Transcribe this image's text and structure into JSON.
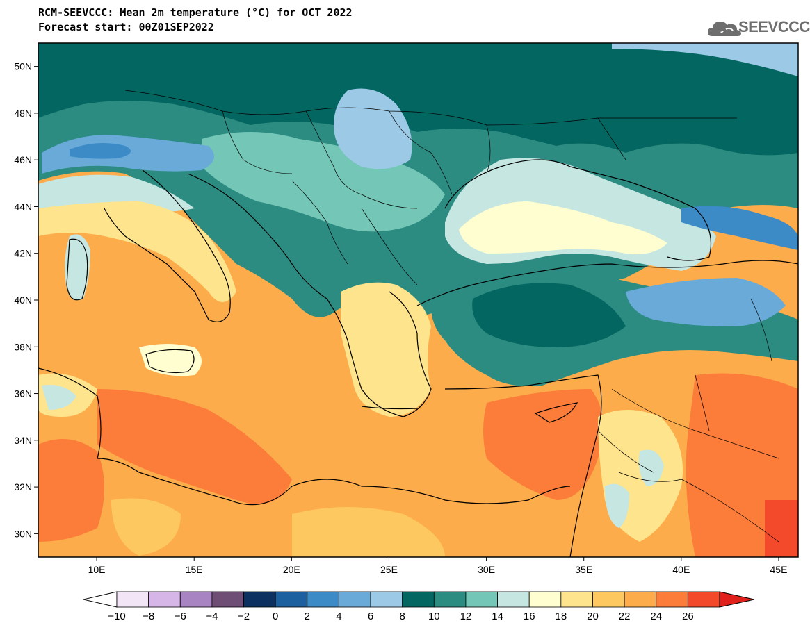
{
  "header": {
    "title": "RCM-SEEVCCC: Mean 2m temperature (°C) for OCT 2022",
    "subtitle": "Forecast start: 00Z01SEP2022",
    "logo_text": "SEEVCCC",
    "logo_icon": "cloud-icon"
  },
  "map": {
    "lat_range": [
      29,
      51
    ],
    "lon_range": [
      7,
      46
    ],
    "lat_labels": [
      "30N",
      "32N",
      "34N",
      "36N",
      "38N",
      "40N",
      "42N",
      "44N",
      "46N",
      "48N",
      "50N"
    ],
    "lat_values": [
      30,
      32,
      34,
      36,
      38,
      40,
      42,
      44,
      46,
      48,
      50
    ],
    "lon_labels": [
      "10E",
      "15E",
      "20E",
      "25E",
      "30E",
      "35E",
      "40E",
      "45E"
    ],
    "lon_values": [
      10,
      15,
      20,
      25,
      30,
      35,
      40,
      45
    ]
  },
  "colorbar": {
    "labels": [
      "-10",
      "-8",
      "-6",
      "-4",
      "-2",
      "0",
      "2",
      "4",
      "6",
      "8",
      "10",
      "12",
      "14",
      "16",
      "18",
      "20",
      "22",
      "24",
      "26"
    ],
    "low_color": "#ffffff",
    "high_color": "#e0201a",
    "colors": [
      "#f2e6f6",
      "#d6b6e6",
      "#a884c2",
      "#6e4e74",
      "#0c3060",
      "#1c60a0",
      "#3c8ac6",
      "#6aaad8",
      "#9ccae6",
      "#046660",
      "#2c8c82",
      "#74c6b6",
      "#c6e6e2",
      "#fefed0",
      "#fee48c",
      "#fec860",
      "#fcac4a",
      "#fc7c3a",
      "#f24a2a"
    ]
  }
}
